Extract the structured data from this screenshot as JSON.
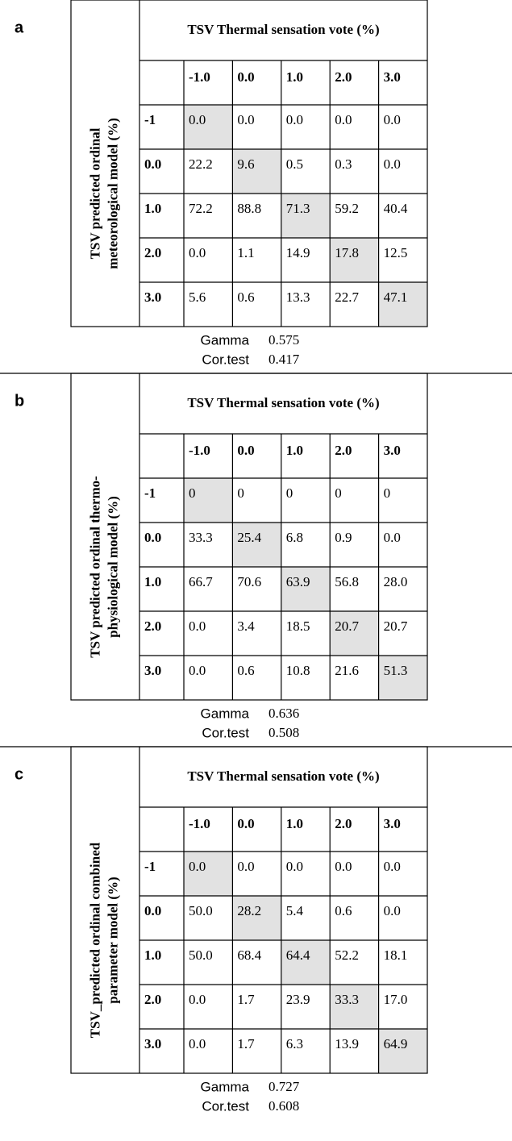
{
  "panels": [
    {
      "letter": "a",
      "title": "TSV Thermal sensation vote (%)",
      "row_axis_label": [
        "TSV predicted ordinal",
        "meteorological model (%)"
      ],
      "columns": [
        "-1.0",
        "0.0",
        "1.0",
        "2.0",
        "3.0"
      ],
      "rows": [
        {
          "label": "-1",
          "values": [
            "0.0",
            "0.0",
            "0.0",
            "0.0",
            "0.0"
          ]
        },
        {
          "label": "0.0",
          "values": [
            "22.2",
            "9.6",
            "0.5",
            "0.3",
            "0.0"
          ]
        },
        {
          "label": "1.0",
          "values": [
            "72.2",
            "88.8",
            "71.3",
            "59.2",
            "40.4"
          ]
        },
        {
          "label": "2.0",
          "values": [
            "0.0",
            "1.1",
            "14.9",
            "17.8",
            "12.5"
          ]
        },
        {
          "label": "3.0",
          "values": [
            "5.6",
            "0.6",
            "13.3",
            "22.7",
            "47.1"
          ]
        }
      ],
      "stats": [
        {
          "label": "Gamma",
          "value": "0.575"
        },
        {
          "label": "Cor.test",
          "value": "0.417"
        }
      ]
    },
    {
      "letter": "b",
      "title": "TSV Thermal sensation vote (%)",
      "row_axis_label": [
        "TSV predicted ordinal thermo-",
        "physiological model (%)"
      ],
      "columns": [
        "-1.0",
        "0.0",
        "1.0",
        "2.0",
        "3.0"
      ],
      "rows": [
        {
          "label": "-1",
          "values": [
            "0",
            "0",
            "0",
            "0",
            "0"
          ]
        },
        {
          "label": "0.0",
          "values": [
            "33.3",
            "25.4",
            "6.8",
            "0.9",
            "0.0"
          ]
        },
        {
          "label": "1.0",
          "values": [
            "66.7",
            "70.6",
            "63.9",
            "56.8",
            "28.0"
          ]
        },
        {
          "label": "2.0",
          "values": [
            "0.0",
            "3.4",
            "18.5",
            "20.7",
            "20.7"
          ]
        },
        {
          "label": "3.0",
          "values": [
            "0.0",
            "0.6",
            "10.8",
            "21.6",
            "51.3"
          ]
        }
      ],
      "stats": [
        {
          "label": "Gamma",
          "value": "0.636"
        },
        {
          "label": "Cor.test",
          "value": "0.508"
        }
      ]
    },
    {
      "letter": "c",
      "title": "TSV Thermal sensation vote (%)",
      "row_axis_label": [
        "TSV_predicted ordinal combined",
        "parameter model (%)"
      ],
      "columns": [
        "-1.0",
        "0.0",
        "1.0",
        "2.0",
        "3.0"
      ],
      "rows": [
        {
          "label": "-1",
          "values": [
            "0.0",
            "0.0",
            "0.0",
            "0.0",
            "0.0"
          ]
        },
        {
          "label": "0.0",
          "values": [
            "50.0",
            "28.2",
            "5.4",
            "0.6",
            "0.0"
          ]
        },
        {
          "label": "1.0",
          "values": [
            "50.0",
            "68.4",
            "64.4",
            "52.2",
            "18.1"
          ]
        },
        {
          "label": "2.0",
          "values": [
            "0.0",
            "1.7",
            "23.9",
            "33.3",
            "17.0"
          ]
        },
        {
          "label": "3.0",
          "values": [
            "0.0",
            "1.7",
            "6.3",
            "13.9",
            "64.9"
          ]
        }
      ],
      "stats": [
        {
          "label": "Gamma",
          "value": "0.727"
        },
        {
          "label": "Cor.test",
          "value": "0.608"
        }
      ]
    }
  ]
}
